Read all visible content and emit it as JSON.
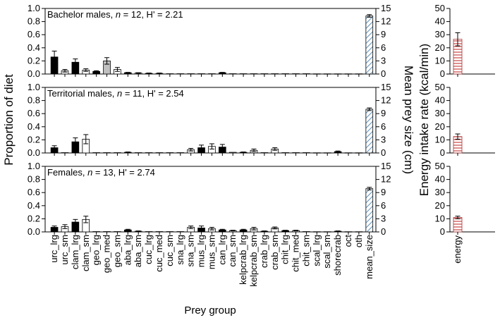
{
  "chart_data": [
    {
      "type": "bar",
      "panel": "left",
      "title_parts": [
        "Bachelor males, ",
        "n",
        " = 12, H' = 2.21"
      ],
      "ylabel": "Proportion of diet",
      "y2label": "Mean prey size (cm)",
      "xlabel": "Prey group",
      "ylim": [
        0,
        1.0
      ],
      "y2lim": [
        0,
        15
      ],
      "yticks": [
        "0.0",
        "0.2",
        "0.4",
        "0.6",
        "0.8",
        "1.0"
      ],
      "y2ticks": [
        "0",
        "3",
        "6",
        "9",
        "12",
        "15"
      ],
      "categories": [
        "urc_lrg",
        "urc_sm",
        "clam_lrg",
        "clam_sm",
        "geo_lrg",
        "geo_med",
        "geo_sm",
        "aba_lrg",
        "aba_sm",
        "cuc_lrg",
        "cuc_med",
        "cuc_sm",
        "sna_lrg",
        "sna_sm",
        "mus_lrg",
        "mus_sm",
        "can_lrg",
        "can_sm",
        "kelpcrab_lrg",
        "kelpcrab_sm",
        "crab_lrg",
        "crab_sm",
        "chit_lrg",
        "chit_med",
        "chit_sm",
        "scal_lrg",
        "scal_sm",
        "shorecrab",
        "oct",
        "oth",
        "mean_size"
      ],
      "bar_fill": [
        "black",
        "white",
        "black",
        "white",
        "black",
        "gray",
        "white",
        "black",
        "white",
        "black",
        "white",
        "white",
        "black",
        "white",
        "black",
        "white",
        "black",
        "white",
        "black",
        "white",
        "black",
        "white",
        "black",
        "white",
        "white",
        "black",
        "white",
        "black",
        "white",
        "black",
        "hatched-blue"
      ],
      "values": [
        0.26,
        0.05,
        0.18,
        0.06,
        0.04,
        0.2,
        0.07,
        0.02,
        0.015,
        0.01,
        0.01,
        0.005,
        0.005,
        0.005,
        0.005,
        0.005,
        0.02,
        0.005,
        0.005,
        0.005,
        0.005,
        0.005,
        0.005,
        0.005,
        0.005,
        0.003,
        0.003,
        0.003,
        0.003,
        0.003,
        13.3
      ],
      "errors": [
        0.09,
        0.02,
        0.05,
        0.02,
        0.01,
        0.05,
        0.03,
        0.005,
        0.005,
        0.005,
        0.005,
        0,
        0,
        0,
        0,
        0,
        0.005,
        0,
        0,
        0,
        0,
        0,
        0,
        0,
        0,
        0,
        0,
        0,
        0,
        0,
        0.3
      ]
    },
    {
      "type": "bar",
      "panel": "left",
      "title_parts": [
        "Territorial males, ",
        "n",
        " = 11, H' = 2.54"
      ],
      "ylim": [
        0,
        1.0
      ],
      "y2lim": [
        0,
        15
      ],
      "yticks": [
        "0.0",
        "0.2",
        "0.4",
        "0.6",
        "0.8",
        "1.0"
      ],
      "y2ticks": [
        "0",
        "3",
        "6",
        "9",
        "12",
        "15"
      ],
      "values": [
        0.08,
        0.005,
        0.17,
        0.21,
        0.005,
        0.005,
        0.005,
        0.01,
        0.005,
        0.005,
        0.005,
        0.005,
        0.005,
        0.05,
        0.08,
        0.1,
        0.09,
        0.01,
        0.01,
        0.04,
        0.005,
        0.06,
        0.005,
        0.005,
        0.005,
        0.003,
        0.003,
        0.02,
        0.003,
        0.003,
        10.0
      ],
      "errors": [
        0.03,
        0,
        0.06,
        0.07,
        0,
        0,
        0,
        0.005,
        0,
        0,
        0,
        0,
        0,
        0.02,
        0.04,
        0.04,
        0.04,
        0,
        0.005,
        0.02,
        0,
        0.02,
        0,
        0,
        0,
        0,
        0,
        0.01,
        0,
        0,
        0.3
      ]
    },
    {
      "type": "bar",
      "panel": "left",
      "title_parts": [
        "Females, ",
        "n",
        " = 13, H' = 2.74"
      ],
      "ylim": [
        0,
        1.0
      ],
      "y2lim": [
        0,
        15
      ],
      "yticks": [
        "0.0",
        "0.2",
        "0.4",
        "0.6",
        "0.8",
        "1.0"
      ],
      "y2ticks": [
        "0",
        "3",
        "6",
        "9",
        "12",
        "15"
      ],
      "values": [
        0.07,
        0.08,
        0.15,
        0.19,
        0.005,
        0.005,
        0.005,
        0.03,
        0.01,
        0.005,
        0.005,
        0.005,
        0.005,
        0.07,
        0.06,
        0.05,
        0.03,
        0.02,
        0.03,
        0.05,
        0.01,
        0.06,
        0.02,
        0.02,
        0.005,
        0.003,
        0.003,
        0.01,
        0.003,
        0.003,
        9.9
      ],
      "errors": [
        0.02,
        0.03,
        0.04,
        0.05,
        0,
        0,
        0,
        0.01,
        0.005,
        0,
        0,
        0,
        0,
        0.02,
        0.03,
        0.02,
        0.01,
        0.005,
        0.01,
        0.02,
        0.005,
        0.015,
        0.005,
        0.005,
        0,
        0,
        0,
        0.005,
        0,
        0,
        0.3
      ]
    },
    {
      "type": "bar",
      "panel": "right",
      "ylabel": "Energy intake rate (kcal/min)",
      "ylim": [
        0,
        50
      ],
      "yticks": [
        "0",
        "10",
        "20",
        "30",
        "40",
        "50"
      ],
      "categories": [
        "energy"
      ],
      "panels": [
        {
          "value": 26.5,
          "error": 5.0
        },
        {
          "value": 12.5,
          "error": 2.0
        },
        {
          "value": 11.0,
          "error": 1.0
        }
      ]
    }
  ]
}
